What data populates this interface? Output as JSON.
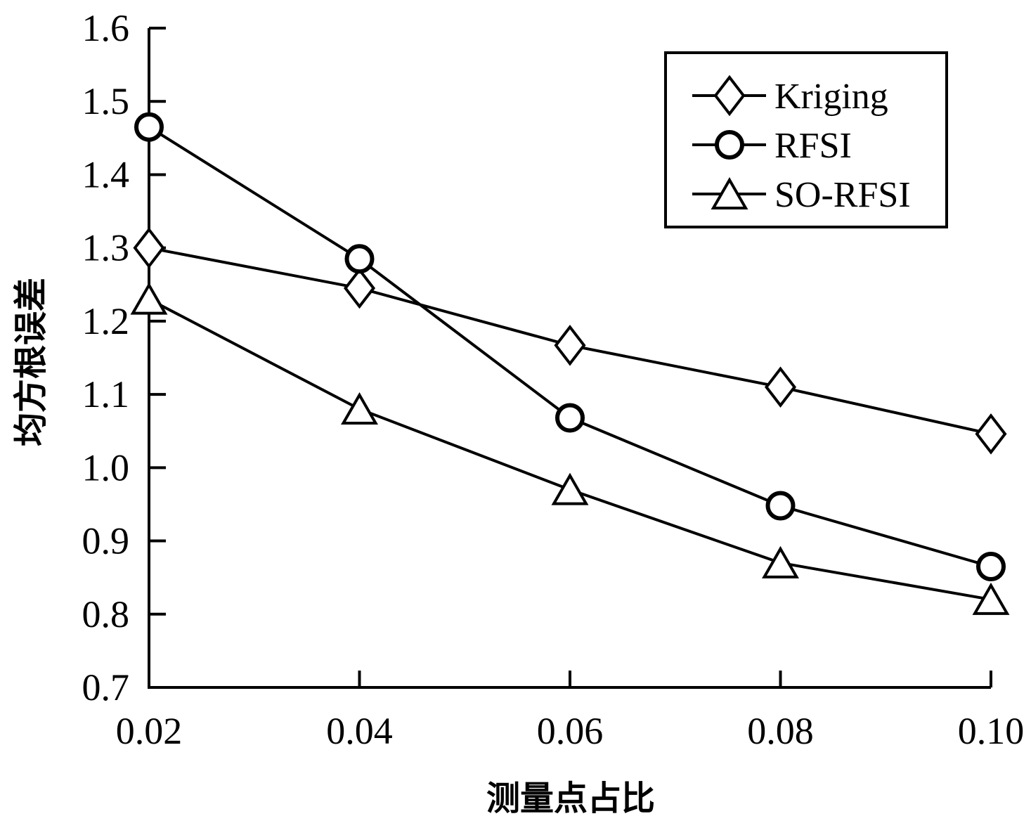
{
  "chart_data": {
    "type": "line",
    "title": "",
    "xlabel": "测量点占比",
    "ylabel": "均方根误差",
    "x": [
      0.02,
      0.04,
      0.06,
      0.08,
      0.1
    ],
    "x_tick_labels": [
      "0.02",
      "0.04",
      "0.06",
      "0.08",
      "0.10"
    ],
    "y_ticks": [
      0.7,
      0.8,
      0.9,
      1.0,
      1.1,
      1.2,
      1.3,
      1.4,
      1.5,
      1.6
    ],
    "y_tick_labels": [
      "0.7",
      "0.8",
      "0.9",
      "1.0",
      "1.1",
      "1.2",
      "1.3",
      "1.4",
      "1.5",
      "1.6"
    ],
    "xlim": [
      0.02,
      0.1
    ],
    "ylim": [
      0.7,
      1.6
    ],
    "grid": false,
    "legend_position": "top-right",
    "line_color": "#000000",
    "series": [
      {
        "name": "Kriging",
        "marker": "diamond",
        "values": [
          1.3,
          1.245,
          1.167,
          1.11,
          1.046
        ]
      },
      {
        "name": "RFSI",
        "marker": "circle",
        "values": [
          1.465,
          1.285,
          1.068,
          0.948,
          0.865
        ]
      },
      {
        "name": "SO-RFSI",
        "marker": "triangle",
        "values": [
          1.23,
          1.08,
          0.97,
          0.87,
          0.82
        ]
      }
    ]
  }
}
